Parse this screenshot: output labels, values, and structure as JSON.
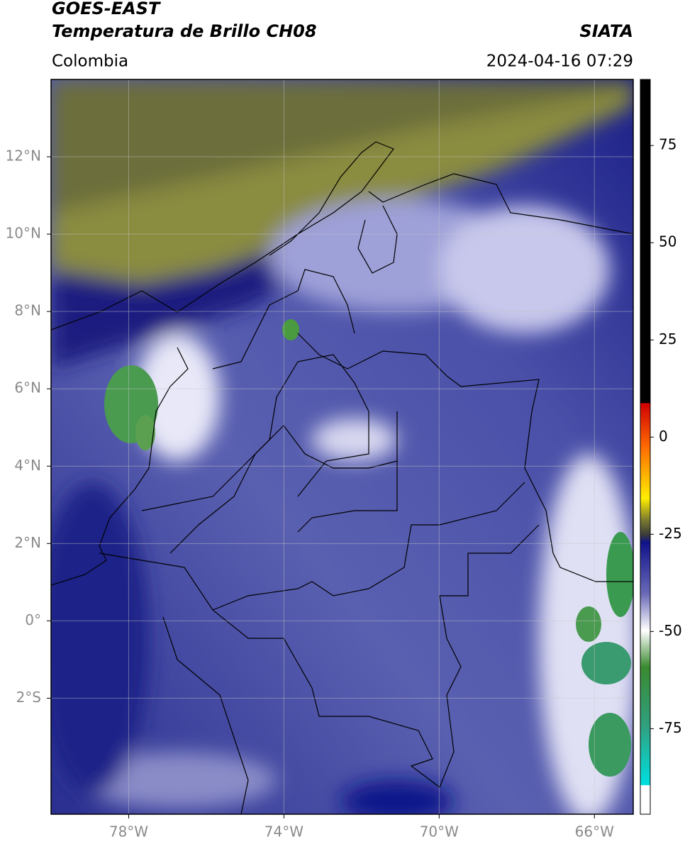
{
  "header": {
    "title_line1": "GOES-EAST",
    "title_line2": "Temperatura de Brillo CH08",
    "region": "Colombia",
    "source": "SIATA",
    "datetime": "2024-04-16 07:29"
  },
  "map": {
    "lonlim": [
      -80,
      -65
    ],
    "latlim": [
      -5,
      14
    ],
    "grid": true,
    "lonticks": [
      {
        "value": -78,
        "label": "78°W"
      },
      {
        "value": -74,
        "label": "74°W"
      },
      {
        "value": -70,
        "label": "70°W"
      },
      {
        "value": -66,
        "label": "66°W"
      }
    ],
    "latticks": [
      {
        "value": 12,
        "label": "12°N"
      },
      {
        "value": 10,
        "label": "10°N"
      },
      {
        "value": 8,
        "label": "8°N"
      },
      {
        "value": 6,
        "label": "6°N"
      },
      {
        "value": 4,
        "label": "4°N"
      },
      {
        "value": 2,
        "label": "2°N"
      },
      {
        "value": 0,
        "label": "0°"
      },
      {
        "value": -2,
        "label": "2°S"
      }
    ]
  },
  "colorbar": {
    "lim": [
      -97,
      92
    ],
    "ticks": [
      75,
      50,
      25,
      0,
      -25,
      -50,
      -75
    ]
  }
}
